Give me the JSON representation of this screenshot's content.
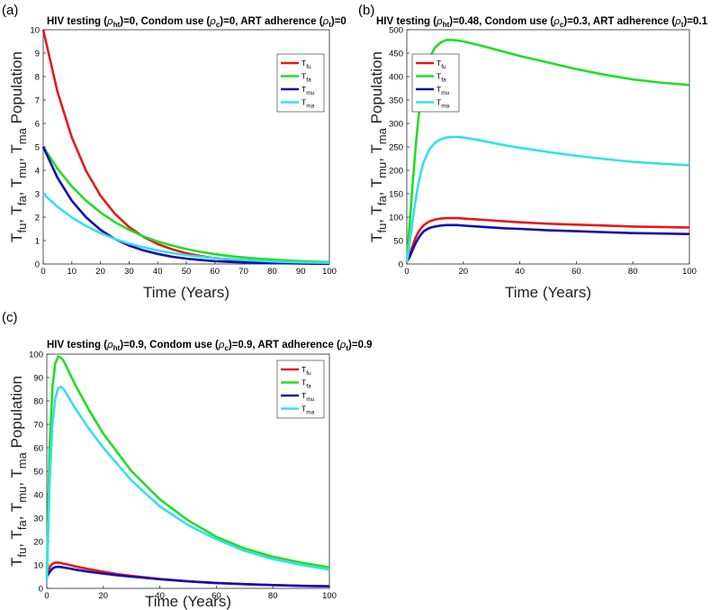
{
  "chart_data": [
    {
      "panel": "(a)",
      "type": "line",
      "title": "HIV testing (ρht)=0, Condom use (ρc)=0, ART adherence (ρt)=0",
      "title_parts": [
        "HIV testing (",
        "ρ",
        "ht",
        ")=0, Condom use (",
        "ρ",
        "c",
        ")=0, ART adherence (",
        "ρ",
        "t",
        ")=0"
      ],
      "xlabel": "Time (Years)",
      "ylabel": "Tfu, Tfa, Tmu, Tma Population",
      "xlim": [
        0,
        100
      ],
      "ylim": [
        0,
        10
      ],
      "xticks": [
        0,
        10,
        20,
        30,
        40,
        50,
        60,
        70,
        80,
        90,
        100
      ],
      "yticks": [
        0,
        1,
        2,
        3,
        4,
        5,
        6,
        7,
        8,
        9,
        10
      ],
      "legend": [
        "Tfu",
        "Tfa",
        "Tmu",
        "Tma"
      ],
      "x": [
        0,
        5,
        10,
        15,
        20,
        25,
        30,
        35,
        40,
        45,
        50,
        55,
        60,
        65,
        70,
        75,
        80,
        85,
        90,
        95,
        100
      ],
      "series": [
        {
          "name": "Tfu",
          "color": "#e41a1a",
          "values": [
            10,
            7.35,
            5.4,
            3.97,
            2.92,
            2.15,
            1.58,
            1.16,
            0.85,
            0.63,
            0.46,
            0.34,
            0.25,
            0.18,
            0.13,
            0.1,
            0.07,
            0.05,
            0.04,
            0.03,
            0.02
          ]
        },
        {
          "name": "Tfa",
          "color": "#22dd22",
          "values": [
            5,
            4.07,
            3.31,
            2.7,
            2.2,
            1.79,
            1.46,
            1.18,
            0.96,
            0.79,
            0.64,
            0.52,
            0.42,
            0.34,
            0.28,
            0.23,
            0.19,
            0.15,
            0.12,
            0.1,
            0.08
          ]
        },
        {
          "name": "Tmu",
          "color": "#1010b0",
          "values": [
            5,
            3.68,
            2.7,
            1.99,
            1.46,
            1.07,
            0.79,
            0.58,
            0.43,
            0.31,
            0.23,
            0.17,
            0.12,
            0.09,
            0.07,
            0.05,
            0.04,
            0.03,
            0.02,
            0.01,
            0.01
          ]
        },
        {
          "name": "Tma",
          "color": "#33e0ee",
          "values": [
            3,
            2.44,
            1.99,
            1.62,
            1.32,
            1.07,
            0.87,
            0.71,
            0.58,
            0.47,
            0.38,
            0.31,
            0.25,
            0.21,
            0.17,
            0.14,
            0.11,
            0.09,
            0.07,
            0.06,
            0.05
          ]
        }
      ]
    },
    {
      "panel": "(b)",
      "type": "line",
      "title": "HIV testing (ρht)=0.48, Condom use (ρc)=0.3, ART adherence (ρt)=0.1",
      "title_parts": [
        "HIV testing (",
        "ρ",
        "ht",
        ")=0.48, Condom use (",
        "ρ",
        "c",
        ")=0.3, ART adherence (",
        "ρ",
        "t",
        ")=0.1"
      ],
      "xlabel": "Time (Years)",
      "ylabel": "Tfu, Tfa, Tmu, Tma Population",
      "xlim": [
        0,
        100
      ],
      "ylim": [
        0,
        500
      ],
      "xticks": [
        0,
        20,
        40,
        60,
        80,
        100
      ],
      "yticks": [
        0,
        50,
        100,
        150,
        200,
        250,
        300,
        350,
        400,
        450,
        500
      ],
      "legend": [
        "Tfu",
        "Tfa",
        "Tmu",
        "Tma"
      ],
      "x": [
        0,
        1,
        2,
        3,
        4,
        5,
        6,
        8,
        10,
        12,
        14,
        16,
        18,
        20,
        25,
        30,
        35,
        40,
        50,
        60,
        70,
        80,
        90,
        100
      ],
      "series": [
        {
          "name": "Tfu",
          "color": "#e41a1a",
          "values": [
            5,
            20,
            38,
            55,
            67,
            76,
            83,
            91,
            95,
            97,
            98,
            98,
            98,
            97,
            95,
            93,
            91,
            89,
            86,
            84,
            82,
            80,
            79,
            78
          ]
        },
        {
          "name": "Tfa",
          "color": "#22dd22",
          "values": [
            5,
            85,
            165,
            240,
            305,
            355,
            395,
            440,
            462,
            473,
            478,
            478,
            477,
            475,
            468,
            460,
            452,
            444,
            430,
            416,
            404,
            394,
            387,
            382
          ]
        },
        {
          "name": "Tmu",
          "color": "#1010b0",
          "values": [
            5,
            15,
            29,
            43,
            54,
            63,
            70,
            77,
            80,
            82,
            83,
            83,
            83,
            82,
            80,
            78,
            76,
            75,
            72,
            70,
            68,
            66,
            65,
            64
          ]
        },
        {
          "name": "Tma",
          "color": "#33e0ee",
          "values": [
            3,
            45,
            90,
            132,
            168,
            196,
            218,
            245,
            259,
            266,
            270,
            271,
            271,
            270,
            265,
            259,
            253,
            248,
            239,
            231,
            224,
            218,
            214,
            211
          ]
        }
      ]
    },
    {
      "panel": "(c)",
      "type": "line",
      "title": "HIV testing (ρht)=0.9, Condom use (ρc)=0.9, ART adherence (ρt)=0.9",
      "title_parts": [
        "HIV testing (",
        "ρ",
        "ht",
        ")=0.9, Condom use (",
        "ρ",
        "c",
        ")=0.9, ART adherence (",
        "ρ",
        "t",
        ")=0.9"
      ],
      "xlabel": "Time (Years)",
      "ylabel": "Tfu, Tfa, Tmu, Tma Population",
      "xlim": [
        0,
        100
      ],
      "ylim": [
        0,
        100
      ],
      "xticks": [
        0,
        20,
        40,
        60,
        80,
        100
      ],
      "yticks": [
        0,
        10,
        20,
        30,
        40,
        50,
        60,
        70,
        80,
        90,
        100
      ],
      "legend": [
        "Tfu",
        "Tfa",
        "Tmu",
        "Tma"
      ],
      "x": [
        0,
        1,
        2,
        3,
        4,
        5,
        6,
        8,
        10,
        15,
        20,
        25,
        30,
        40,
        50,
        60,
        70,
        80,
        90,
        100
      ],
      "series": [
        {
          "name": "Tfu",
          "color": "#e41a1a",
          "values": [
            5,
            9,
            10.5,
            11,
            11,
            10.8,
            10.5,
            10,
            9.4,
            8.2,
            7.1,
            6.1,
            5.3,
            4,
            3,
            2.3,
            1.8,
            1.4,
            1.1,
            0.9
          ]
        },
        {
          "name": "Tfa",
          "color": "#22dd22",
          "values": [
            5,
            60,
            86,
            96,
            99,
            98.5,
            97,
            92,
            87,
            76,
            66,
            58,
            50,
            38,
            29,
            22,
            17,
            13.5,
            11,
            9
          ]
        },
        {
          "name": "Tmu",
          "color": "#1010b0",
          "values": [
            5,
            7,
            8.5,
            9.1,
            9.2,
            9.1,
            8.9,
            8.5,
            8,
            7.1,
            6.3,
            5.6,
            5,
            3.9,
            3,
            2.3,
            1.8,
            1.4,
            1.1,
            0.9
          ]
        },
        {
          "name": "Tma",
          "color": "#33e0ee",
          "values": [
            3,
            45,
            70,
            81,
            85.5,
            86,
            85,
            81,
            77,
            68,
            60,
            53,
            46,
            35,
            27,
            21,
            16,
            12.5,
            10,
            8
          ]
        }
      ]
    }
  ]
}
